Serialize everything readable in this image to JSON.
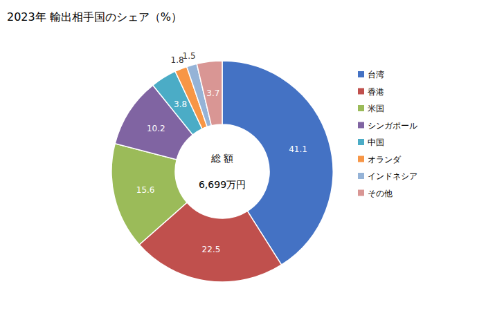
{
  "chart_data": {
    "type": "donut",
    "title": "2023年 輸出相手国のシェア（%）",
    "total_label": "総 額",
    "total": "6,699万円",
    "categories": [
      "台湾",
      "香港",
      "米国",
      "シンガポール",
      "中国",
      "オランダ",
      "インドネシア",
      "その他"
    ],
    "values": [
      41.1,
      22.5,
      15.6,
      10.2,
      3.8,
      1.8,
      1.5,
      3.7
    ],
    "colors": [
      "#4472c4",
      "#c0504d",
      "#9bbb59",
      "#8064a2",
      "#4bacc6",
      "#f79646",
      "#95b3d7",
      "#d99694"
    ],
    "data_labels": true,
    "legend": "right"
  }
}
